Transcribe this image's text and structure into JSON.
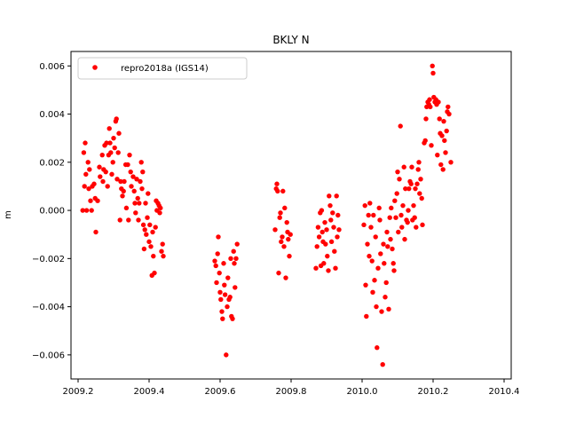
{
  "chart_data": {
    "type": "scatter",
    "title": "BKLY N",
    "xlabel": "",
    "ylabel": "m",
    "xlim": [
      2009.18,
      2010.42
    ],
    "ylim": [
      -0.007,
      0.0066
    ],
    "xticks": [
      2009.2,
      2009.4,
      2009.6,
      2009.8,
      2010.0,
      2010.2,
      2010.4
    ],
    "xtick_labels": [
      "2009.2",
      "2009.4",
      "2009.6",
      "2009.8",
      "2010.0",
      "2010.2",
      "2010.4"
    ],
    "yticks": [
      -0.006,
      -0.004,
      -0.002,
      0.0,
      0.002,
      0.004,
      0.006
    ],
    "ytick_labels": [
      "−0.006",
      "−0.004",
      "−0.002",
      "0.000",
      "0.002",
      "0.004",
      "0.006"
    ],
    "grid": false,
    "legend_position": "top-left",
    "series": [
      {
        "name": "repro2018a (IGS14)",
        "color": "#ff0000",
        "marker": "circle",
        "points": [
          [
            2009.213,
            0.0
          ],
          [
            2009.216,
            0.0024
          ],
          [
            2009.218,
            0.001
          ],
          [
            2009.22,
            0.0028
          ],
          [
            2009.222,
            0.0015
          ],
          [
            2009.224,
            0.0
          ],
          [
            2009.228,
            0.002
          ],
          [
            2009.23,
            0.0009
          ],
          [
            2009.232,
            0.0017
          ],
          [
            2009.235,
            0.0004
          ],
          [
            2009.238,
            0.0
          ],
          [
            2009.24,
            0.001
          ],
          [
            2009.245,
            0.0011
          ],
          [
            2009.248,
            0.0005
          ],
          [
            2009.25,
            -0.0009
          ],
          [
            2009.255,
            0.0004
          ],
          [
            2009.26,
            0.0018
          ],
          [
            2009.262,
            0.0014
          ],
          [
            2009.268,
            0.0023
          ],
          [
            2009.27,
            0.0012
          ],
          [
            2009.272,
            0.0017
          ],
          [
            2009.275,
            0.0027
          ],
          [
            2009.278,
            0.0016
          ],
          [
            2009.28,
            0.0028
          ],
          [
            2009.283,
            0.001
          ],
          [
            2009.286,
            0.0023
          ],
          [
            2009.288,
            0.0034
          ],
          [
            2009.29,
            0.0028
          ],
          [
            2009.292,
            0.0024
          ],
          [
            2009.295,
            0.0015
          ],
          [
            2009.298,
            0.002
          ],
          [
            2009.3,
            0.003
          ],
          [
            2009.303,
            0.0026
          ],
          [
            2009.306,
            0.0037
          ],
          [
            2009.308,
            0.0038
          ],
          [
            2009.31,
            0.0013
          ],
          [
            2009.313,
            0.0024
          ],
          [
            2009.315,
            0.0032
          ],
          [
            2009.318,
            -0.0004
          ],
          [
            2009.32,
            0.0012
          ],
          [
            2009.322,
            0.0009
          ],
          [
            2009.325,
            0.0006
          ],
          [
            2009.328,
            0.0008
          ],
          [
            2009.33,
            0.0012
          ],
          [
            2009.334,
            0.0019
          ],
          [
            2009.336,
            0.0001
          ],
          [
            2009.34,
            0.0019
          ],
          [
            2009.342,
            -0.0004
          ],
          [
            2009.345,
            0.0023
          ],
          [
            2009.348,
            0.0016
          ],
          [
            2009.35,
            0.001
          ],
          [
            2009.355,
            0.0014
          ],
          [
            2009.358,
            0.0008
          ],
          [
            2009.36,
            0.0003
          ],
          [
            2009.362,
            -0.0001
          ],
          [
            2009.365,
            0.0013
          ],
          [
            2009.368,
            0.0005
          ],
          [
            2009.37,
            -0.0004
          ],
          [
            2009.372,
            0.0003
          ],
          [
            2009.375,
            0.0012
          ],
          [
            2009.378,
            0.002
          ],
          [
            2009.38,
            0.0009
          ],
          [
            2009.382,
            0.0016
          ],
          [
            2009.384,
            -0.0006
          ],
          [
            2009.386,
            -0.0016
          ],
          [
            2009.388,
            -0.0008
          ],
          [
            2009.39,
            0.0003
          ],
          [
            2009.392,
            -0.001
          ],
          [
            2009.395,
            -0.0003
          ],
          [
            2009.397,
            0.0007
          ],
          [
            2009.4,
            -0.0013
          ],
          [
            2009.402,
            -0.0006
          ],
          [
            2009.405,
            -0.0015
          ],
          [
            2009.408,
            -0.0027
          ],
          [
            2009.41,
            -0.0009
          ],
          [
            2009.412,
            -0.0019
          ],
          [
            2009.415,
            -0.0026
          ],
          [
            2009.418,
            -0.0007
          ],
          [
            2009.42,
            0.0004
          ],
          [
            2009.422,
            0.0
          ],
          [
            2009.425,
            0.0003
          ],
          [
            2009.428,
            0.0002
          ],
          [
            2009.43,
            -0.0001
          ],
          [
            2009.432,
            0.0001
          ],
          [
            2009.435,
            -0.0017
          ],
          [
            2009.438,
            -0.0014
          ],
          [
            2009.44,
            -0.0019
          ],
          [
            2009.585,
            -0.0021
          ],
          [
            2009.588,
            -0.0023
          ],
          [
            2009.59,
            -0.003
          ],
          [
            2009.593,
            -0.0018
          ],
          [
            2009.595,
            -0.0011
          ],
          [
            2009.598,
            -0.0026
          ],
          [
            2009.6,
            -0.0034
          ],
          [
            2009.602,
            -0.0037
          ],
          [
            2009.605,
            -0.0042
          ],
          [
            2009.607,
            -0.0045
          ],
          [
            2009.61,
            -0.0022
          ],
          [
            2009.612,
            -0.0031
          ],
          [
            2009.614,
            -0.0035
          ],
          [
            2009.617,
            -0.006
          ],
          [
            2009.62,
            -0.004
          ],
          [
            2009.622,
            -0.0028
          ],
          [
            2009.625,
            -0.0037
          ],
          [
            2009.628,
            -0.0036
          ],
          [
            2009.63,
            -0.002
          ],
          [
            2009.632,
            -0.0044
          ],
          [
            2009.635,
            -0.0045
          ],
          [
            2009.638,
            -0.0017
          ],
          [
            2009.64,
            -0.0022
          ],
          [
            2009.642,
            -0.0032
          ],
          [
            2009.645,
            -0.002
          ],
          [
            2009.648,
            -0.0014
          ],
          [
            2009.755,
            -0.0008
          ],
          [
            2009.758,
            0.0009
          ],
          [
            2009.76,
            0.0011
          ],
          [
            2009.762,
            0.0008
          ],
          [
            2009.765,
            -0.0026
          ],
          [
            2009.768,
            -0.0003
          ],
          [
            2009.77,
            -0.0001
          ],
          [
            2009.772,
            -0.0013
          ],
          [
            2009.775,
            -0.0011
          ],
          [
            2009.777,
            0.0008
          ],
          [
            2009.78,
            -0.0015
          ],
          [
            2009.782,
            0.0001
          ],
          [
            2009.785,
            -0.0028
          ],
          [
            2009.788,
            -0.0005
          ],
          [
            2009.79,
            -0.0009
          ],
          [
            2009.792,
            -0.0012
          ],
          [
            2009.795,
            -0.0019
          ],
          [
            2009.798,
            -0.001
          ],
          [
            2009.87,
            -0.0024
          ],
          [
            2009.873,
            -0.0015
          ],
          [
            2009.876,
            -0.0007
          ],
          [
            2009.879,
            -0.0011
          ],
          [
            2009.882,
            -0.0001
          ],
          [
            2009.884,
            -0.0023
          ],
          [
            2009.886,
            0.0
          ],
          [
            2009.888,
            -0.0009
          ],
          [
            2009.89,
            -0.0013
          ],
          [
            2009.892,
            -0.0022
          ],
          [
            2009.895,
            -0.0005
          ],
          [
            2009.897,
            -0.0014
          ],
          [
            2009.9,
            -0.0008
          ],
          [
            2009.902,
            -0.0019
          ],
          [
            2009.905,
            -0.0025
          ],
          [
            2009.907,
            0.0006
          ],
          [
            2009.91,
            0.0002
          ],
          [
            2009.912,
            -0.0004
          ],
          [
            2009.914,
            -0.0013
          ],
          [
            2009.917,
            -0.0001
          ],
          [
            2009.92,
            -0.0007
          ],
          [
            2009.922,
            -0.0017
          ],
          [
            2009.925,
            -0.0024
          ],
          [
            2009.928,
            0.0006
          ],
          [
            2009.93,
            -0.0011
          ],
          [
            2009.932,
            -0.0002
          ],
          [
            2009.935,
            -0.0008
          ],
          [
            2010.005,
            -0.0006
          ],
          [
            2010.008,
            0.0002
          ],
          [
            2010.01,
            -0.0031
          ],
          [
            2010.012,
            -0.0044
          ],
          [
            2010.015,
            -0.0014
          ],
          [
            2010.018,
            -0.0002
          ],
          [
            2010.02,
            -0.0019
          ],
          [
            2010.022,
            0.0003
          ],
          [
            2010.025,
            -0.0007
          ],
          [
            2010.028,
            -0.0021
          ],
          [
            2010.03,
            -0.0034
          ],
          [
            2010.032,
            -0.0002
          ],
          [
            2010.035,
            -0.0029
          ],
          [
            2010.038,
            -0.0011
          ],
          [
            2010.04,
            -0.004
          ],
          [
            2010.042,
            -0.0057
          ],
          [
            2010.045,
            -0.0024
          ],
          [
            2010.048,
            0.0001
          ],
          [
            2010.05,
            -0.0004
          ],
          [
            2010.052,
            -0.0018
          ],
          [
            2010.055,
            -0.0042
          ],
          [
            2010.058,
            -0.0064
          ],
          [
            2010.06,
            -0.0014
          ],
          [
            2010.062,
            -0.0022
          ],
          [
            2010.065,
            -0.0036
          ],
          [
            2010.068,
            -0.003
          ],
          [
            2010.07,
            -0.0009
          ],
          [
            2010.072,
            -0.0015
          ],
          [
            2010.075,
            -0.0041
          ],
          [
            2010.078,
            -0.0003
          ],
          [
            2010.08,
            -0.0012
          ],
          [
            2010.082,
            0.0001
          ],
          [
            2010.085,
            -0.0016
          ],
          [
            2010.088,
            -0.0022
          ],
          [
            2010.09,
            -0.0025
          ],
          [
            2010.092,
            0.0004
          ],
          [
            2010.095,
            -0.0003
          ],
          [
            2010.098,
            0.0007
          ],
          [
            2010.1,
            0.0016
          ],
          [
            2010.102,
            -0.0009
          ],
          [
            2010.105,
            0.0013
          ],
          [
            2010.108,
            0.0035
          ],
          [
            2010.11,
            -0.0002
          ],
          [
            2010.112,
            -0.0007
          ],
          [
            2010.115,
            0.0002
          ],
          [
            2010.118,
            0.0018
          ],
          [
            2010.12,
            -0.0012
          ],
          [
            2010.122,
            0.0009
          ],
          [
            2010.125,
            -0.0004
          ],
          [
            2010.128,
            -0.0005
          ],
          [
            2010.13,
            0.0
          ],
          [
            2010.132,
            0.0009
          ],
          [
            2010.135,
            0.0012
          ],
          [
            2010.138,
            0.0011
          ],
          [
            2010.14,
            0.0018
          ],
          [
            2010.142,
            -0.0004
          ],
          [
            2010.145,
            0.0002
          ],
          [
            2010.148,
            -0.0003
          ],
          [
            2010.15,
            0.0009
          ],
          [
            2010.152,
            -0.0007
          ],
          [
            2010.155,
            0.0011
          ],
          [
            2010.158,
            0.0017
          ],
          [
            2010.16,
            0.002
          ],
          [
            2010.162,
            0.0007
          ],
          [
            2010.165,
            0.0013
          ],
          [
            2010.168,
            0.0005
          ],
          [
            2010.17,
            -0.0006
          ],
          [
            2010.175,
            0.0028
          ],
          [
            2010.178,
            0.0029
          ],
          [
            2010.18,
            0.0038
          ],
          [
            2010.182,
            0.0043
          ],
          [
            2010.185,
            0.0045
          ],
          [
            2010.188,
            0.0044
          ],
          [
            2010.19,
            0.0046
          ],
          [
            2010.192,
            0.0043
          ],
          [
            2010.195,
            0.0027
          ],
          [
            2010.198,
            0.006
          ],
          [
            2010.2,
            0.0057
          ],
          [
            2010.202,
            0.0047
          ],
          [
            2010.205,
            0.0045
          ],
          [
            2010.208,
            0.0046
          ],
          [
            2010.21,
            0.0044
          ],
          [
            2010.212,
            0.0023
          ],
          [
            2010.215,
            0.0045
          ],
          [
            2010.218,
            0.0038
          ],
          [
            2010.22,
            0.0032
          ],
          [
            2010.222,
            0.0019
          ],
          [
            2010.225,
            0.0031
          ],
          [
            2010.228,
            0.0017
          ],
          [
            2010.23,
            0.0037
          ],
          [
            2010.232,
            0.0029
          ],
          [
            2010.235,
            0.0024
          ],
          [
            2010.238,
            0.0033
          ],
          [
            2010.24,
            0.0041
          ],
          [
            2010.242,
            0.0043
          ],
          [
            2010.245,
            0.004
          ],
          [
            2010.25,
            0.002
          ]
        ]
      }
    ]
  }
}
